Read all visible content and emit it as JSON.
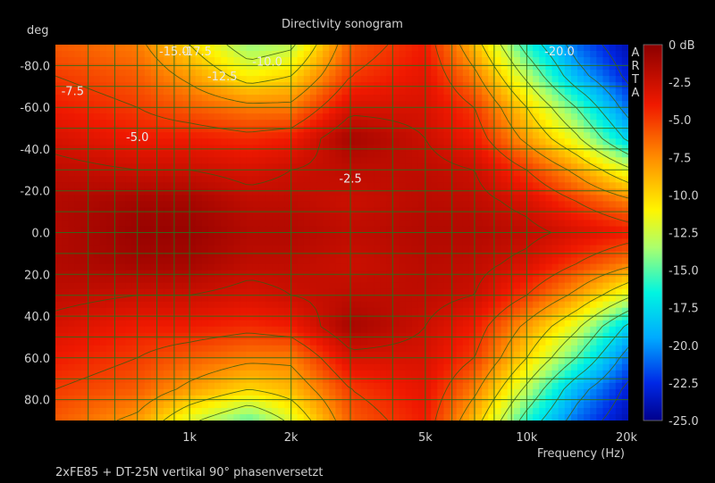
{
  "chart_data": {
    "type": "heatmap",
    "title": "Directivity sonogram",
    "ylabel": "deg",
    "xlabel": "Frequency (Hz)",
    "caption": "2xFE85 + DT-25N vertikal 90° phasenversetzt",
    "watermark": "ARTA",
    "x_scale": "log",
    "xlim": [
      400,
      20000
    ],
    "ylim": [
      90,
      -90
    ],
    "x_ticks": [
      {
        "value": 1000,
        "label": "1k"
      },
      {
        "value": 2000,
        "label": "2k"
      },
      {
        "value": 5000,
        "label": "5k"
      },
      {
        "value": 10000,
        "label": "10k"
      },
      {
        "value": 20000,
        "label": "20k"
      }
    ],
    "y_ticks": [
      {
        "value": -80,
        "label": "-80.0"
      },
      {
        "value": -60,
        "label": "-60.0"
      },
      {
        "value": -40,
        "label": "-40.0"
      },
      {
        "value": -20,
        "label": "-20.0"
      },
      {
        "value": 0,
        "label": "0.0"
      },
      {
        "value": 20,
        "label": "20.0"
      },
      {
        "value": 40,
        "label": "40.0"
      },
      {
        "value": 60,
        "label": "60.0"
      },
      {
        "value": 80,
        "label": "80.0"
      }
    ],
    "colorbar": {
      "unit": "dB",
      "range": [
        -25,
        0
      ],
      "ticks": [
        {
          "value": 0,
          "label": "0 dB"
        },
        {
          "value": -2.5,
          "label": "-2.5"
        },
        {
          "value": -5,
          "label": "-5.0"
        },
        {
          "value": -7.5,
          "label": "-7.5"
        },
        {
          "value": -10,
          "label": "-10.0"
        },
        {
          "value": -12.5,
          "label": "-12.5"
        },
        {
          "value": -15,
          "label": "-15.0"
        },
        {
          "value": -17.5,
          "label": "-17.5"
        },
        {
          "value": -20,
          "label": "-20.0"
        },
        {
          "value": -22.5,
          "label": "-22.5"
        },
        {
          "value": -25,
          "label": "-25.0"
        }
      ]
    },
    "grid": true,
    "contour_labels": [
      {
        "text": "-15.0",
        "freq": 900,
        "angle": -87
      },
      {
        "text": "-17.5",
        "freq": 1050,
        "angle": -87
      },
      {
        "text": "-12.5",
        "freq": 1250,
        "angle": -75
      },
      {
        "text": "-10.0",
        "freq": 1700,
        "angle": -82
      },
      {
        "text": "-7.5",
        "freq": 450,
        "angle": -68
      },
      {
        "text": "-5.0",
        "freq": 700,
        "angle": -46
      },
      {
        "text": "-2.5",
        "freq": 3000,
        "angle": -26
      },
      {
        "text": "-20.0",
        "freq": 12500,
        "angle": -87
      }
    ],
    "level_frequencies": [
      400,
      700,
      1000,
      1500,
      2000,
      3000,
      5000,
      7000,
      10000,
      14000,
      20000
    ],
    "level_angles": [
      -90,
      -75,
      -60,
      -45,
      -30,
      -15,
      0,
      15,
      30,
      45,
      60,
      75,
      90
    ],
    "levels_db": [
      [
        -6,
        -7,
        -10,
        -14,
        -13,
        -6,
        -4,
        -9,
        -16,
        -21,
        -24
      ],
      [
        -5,
        -6,
        -8,
        -11,
        -10,
        -5,
        -3.5,
        -7,
        -13,
        -19,
        -23
      ],
      [
        -4,
        -5,
        -6,
        -7,
        -7,
        -3,
        -3,
        -5,
        -10,
        -15,
        -21
      ],
      [
        -3,
        -4,
        -4,
        -4.5,
        -4,
        -1,
        -2.5,
        -4,
        -8,
        -12,
        -18
      ],
      [
        -2,
        -2.5,
        -2.5,
        -3,
        -2.5,
        -2,
        -2,
        -2.5,
        -5,
        -8,
        -12
      ],
      [
        -1.5,
        -1,
        -1,
        -2,
        -2,
        -2.5,
        -1.8,
        -2,
        -3,
        -5,
        -7
      ],
      [
        -1.5,
        -0.5,
        -0.5,
        -1.5,
        -1.5,
        -2,
        -1.5,
        -1.5,
        -2,
        -3,
        -4
      ],
      [
        -1.5,
        -1,
        -1,
        -2,
        -2,
        -2.5,
        -1.8,
        -2,
        -3,
        -5,
        -7
      ],
      [
        -2,
        -2.5,
        -2.5,
        -3,
        -2.5,
        -2,
        -2,
        -2.5,
        -5,
        -8,
        -12
      ],
      [
        -3,
        -4,
        -4,
        -4.5,
        -4,
        -1,
        -2.5,
        -4,
        -8,
        -12,
        -18
      ],
      [
        -4,
        -5,
        -6,
        -7,
        -7,
        -3,
        -3,
        -5,
        -10,
        -15,
        -21
      ],
      [
        -5,
        -6,
        -8,
        -10,
        -9,
        -5,
        -3.5,
        -7,
        -13,
        -19,
        -23
      ],
      [
        -6,
        -8,
        -12,
        -15,
        -12,
        -6,
        -4,
        -9,
        -16,
        -21,
        -24
      ]
    ]
  }
}
